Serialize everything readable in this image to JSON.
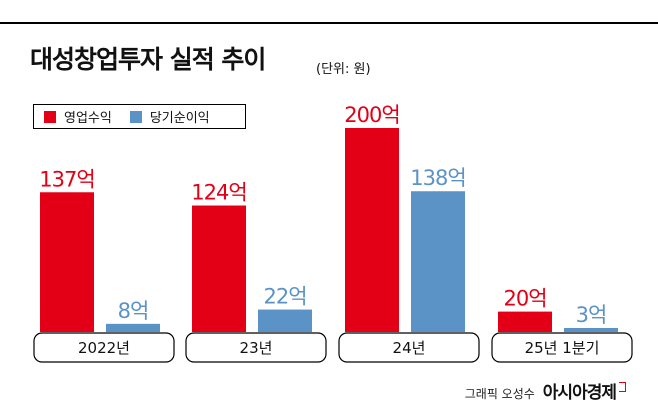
{
  "title": "대성창업투자 실적 추이",
  "unit_label": "(단위: 원)",
  "legend": [
    {
      "label": "영업수익",
      "color": "#e30016"
    },
    {
      "label": "당기순이익",
      "color": "#5b93c7"
    }
  ],
  "chart_data": {
    "type": "bar",
    "title": "대성창업투자 실적 추이",
    "categories": [
      "2022년",
      "23년",
      "24년",
      "25년 1분기"
    ],
    "series": [
      {
        "name": "영업수익",
        "color": "#e30016",
        "values": [
          137,
          124,
          200,
          20
        ],
        "labels": [
          "137억",
          "124억",
          "200억",
          "20억"
        ]
      },
      {
        "name": "당기순이익",
        "color": "#5b93c7",
        "values": [
          8,
          22,
          138,
          3
        ],
        "labels": [
          "8억",
          "22억",
          "138억",
          "3억"
        ]
      }
    ],
    "ylim": [
      0,
      200
    ],
    "grid": false,
    "legend_position": "top-left"
  },
  "credit": "그래픽 오성수",
  "brand": "아시아경제"
}
